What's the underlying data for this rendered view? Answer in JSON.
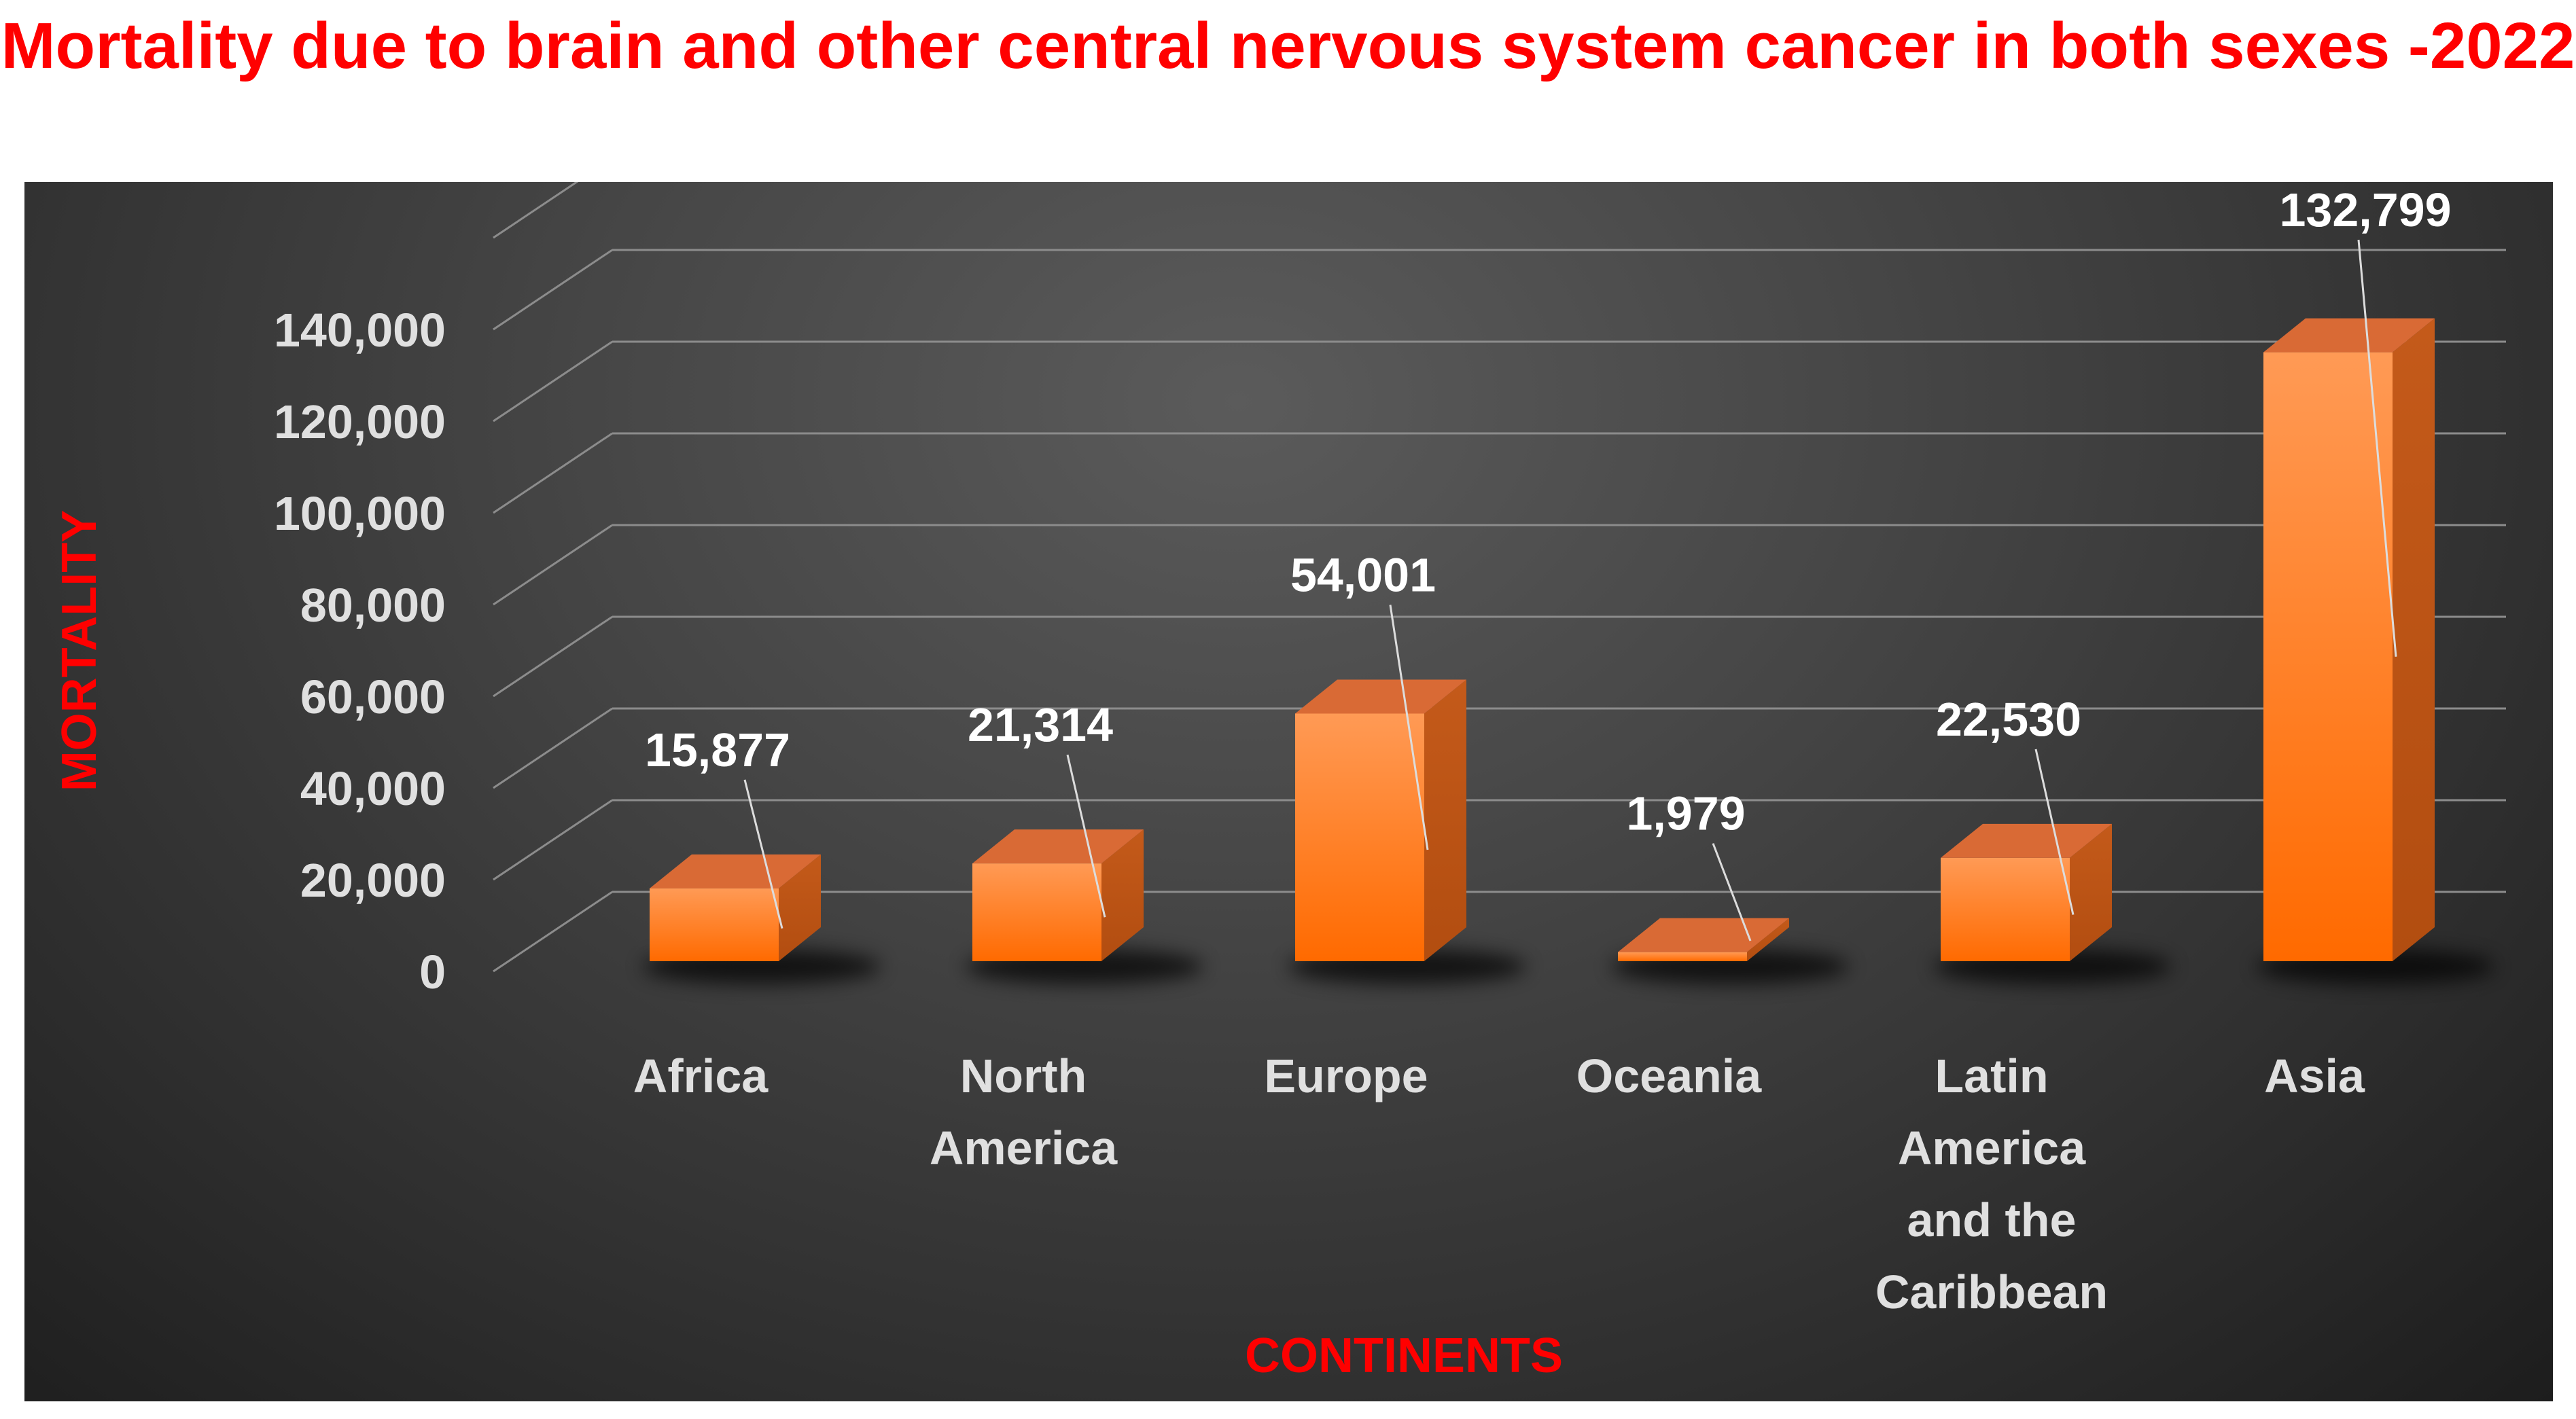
{
  "chart_data": {
    "type": "bar",
    "title": "Mortality due to brain and other central nervous system cancer in both sexes -2022",
    "xlabel": "CONTINENTS",
    "ylabel": "MORTALITY",
    "categories": [
      [
        "Africa"
      ],
      [
        "North",
        "America"
      ],
      [
        "Europe"
      ],
      [
        "Oceania"
      ],
      [
        "Latin",
        "America",
        "and the",
        "Caribbean"
      ],
      [
        "Asia"
      ]
    ],
    "values": [
      15877,
      21314,
      54001,
      1979,
      22530,
      132799
    ],
    "data_labels": [
      "15,877",
      "21,314",
      "54,001",
      "1,979",
      "22,530",
      "132,799"
    ],
    "yticks": [
      "0",
      "20,000",
      "40,000",
      "60,000",
      "80,000",
      "100,000",
      "120,000",
      "140,000"
    ],
    "ylim": [
      0,
      160000
    ],
    "grid": true,
    "legend": "none",
    "colors": {
      "bar_front_top": "#ff9a55",
      "bar_front_bottom": "#ff6a00",
      "bar_top": "#d96a35",
      "bar_side": "#b24d10",
      "title": "#ff0000",
      "axis_title": "#ff0000",
      "tick_label": "#e0e0e0",
      "data_label": "#ffffff"
    }
  }
}
